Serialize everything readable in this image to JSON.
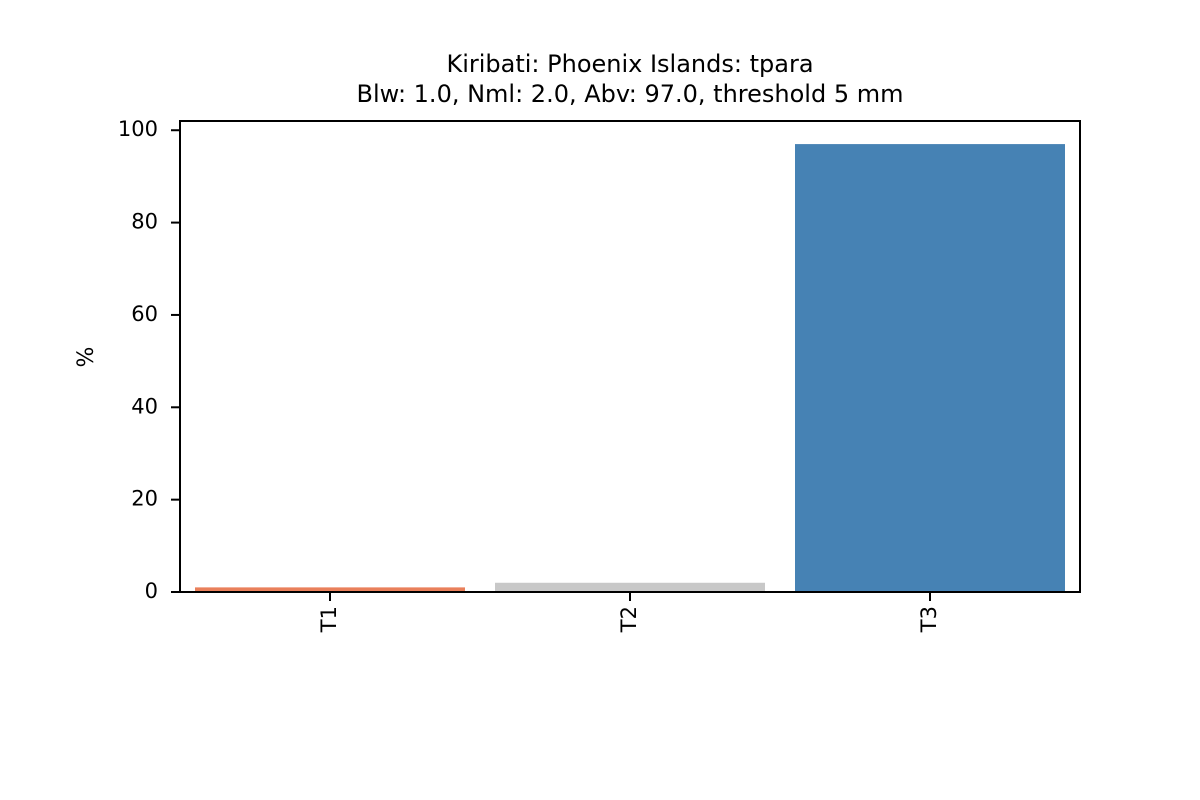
{
  "chart_data": {
    "type": "bar",
    "title": "Kiribati: Phoenix Islands: tpara",
    "subtitle": "Blw: 1.0, Nml: 2.0, Abv: 97.0, threshold 5 mm",
    "xlabel": "",
    "ylabel": "%",
    "categories": [
      "T1",
      "T2",
      "T3"
    ],
    "values": [
      1.0,
      2.0,
      97.0
    ],
    "bar_colors": [
      "#e9805b",
      "#c8c8c8",
      "#4682b4"
    ],
    "ylim": [
      0,
      102
    ],
    "yticks": [
      0,
      20,
      40,
      60,
      80,
      100
    ],
    "grid": false,
    "legend": "none"
  }
}
